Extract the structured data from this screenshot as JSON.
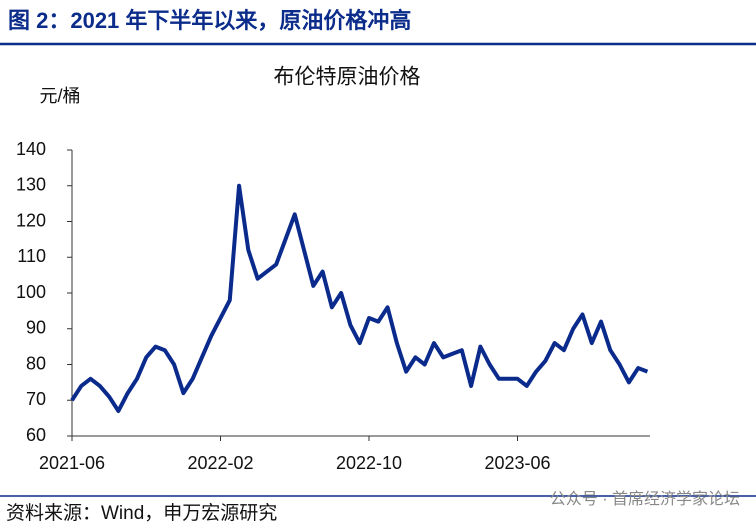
{
  "header": {
    "title": "图 2：2021 年下半年以来，原油价格冲高"
  },
  "chart_data": {
    "type": "line",
    "title": "布伦特原油价格",
    "y_label": "元/桶",
    "categories": [
      "2021-06",
      null,
      null,
      null,
      null,
      null,
      null,
      null,
      null,
      null,
      null,
      null,
      null,
      null,
      null,
      null,
      "2022-02",
      null,
      null,
      null,
      null,
      null,
      null,
      null,
      null,
      null,
      null,
      null,
      null,
      null,
      null,
      null,
      "2022-10",
      null,
      null,
      null,
      null,
      null,
      null,
      null,
      null,
      null,
      null,
      null,
      null,
      null,
      null,
      null,
      "2023-06",
      null,
      null,
      null,
      null,
      null,
      null,
      null,
      null,
      null,
      null,
      null,
      null,
      null,
      null
    ],
    "values": [
      70,
      74,
      76,
      74,
      71,
      67,
      72,
      76,
      82,
      85,
      84,
      80,
      72,
      76,
      82,
      88,
      93,
      98,
      130,
      112,
      104,
      106,
      108,
      115,
      122,
      112,
      102,
      106,
      96,
      100,
      91,
      86,
      93,
      92,
      96,
      86,
      78,
      82,
      80,
      86,
      82,
      83,
      84,
      74,
      85,
      80,
      76,
      76,
      76,
      74,
      78,
      81,
      86,
      84,
      90,
      94,
      86,
      92,
      84,
      80,
      75,
      79,
      78
    ],
    "color": "#0a2a8c",
    "ylim": [
      60,
      140
    ],
    "yticks": [
      60,
      70,
      80,
      90,
      100,
      110,
      120,
      130,
      140
    ],
    "grid": false
  },
  "footer": {
    "source": "资料来源：Wind，申万宏源研究",
    "watermark": "公众号 · 首席经济学家论坛"
  }
}
